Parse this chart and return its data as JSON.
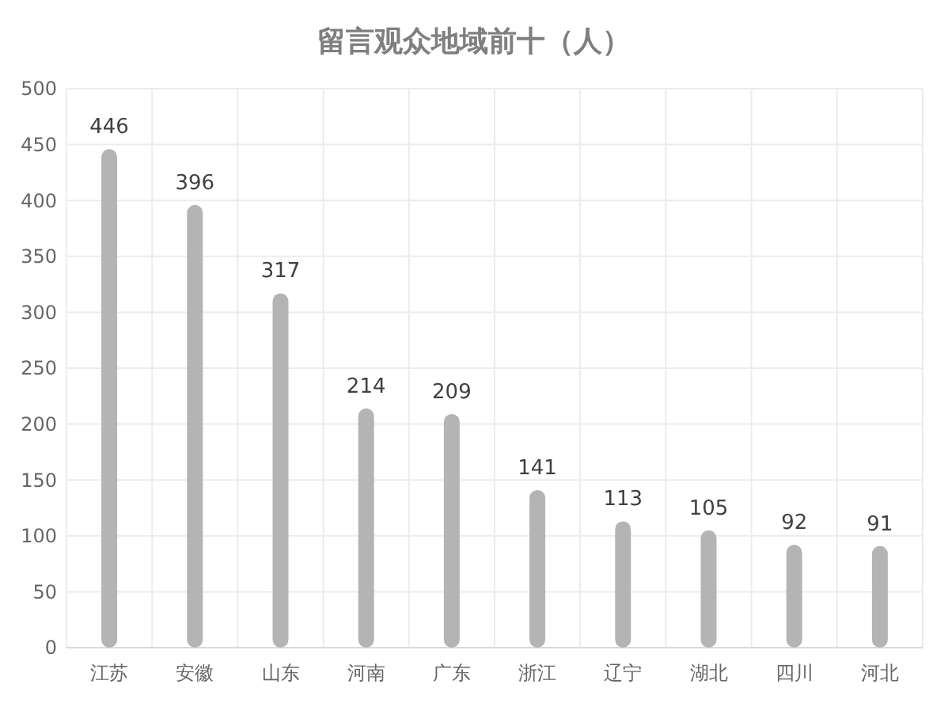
{
  "chart_data": {
    "type": "bar",
    "title": "留言观众地域前十（人）",
    "categories": [
      "江苏",
      "安徽",
      "山东",
      "河南",
      "广东",
      "浙江",
      "辽宁",
      "湖北",
      "四川",
      "河北"
    ],
    "values": [
      446,
      396,
      317,
      214,
      209,
      141,
      113,
      105,
      92,
      91
    ],
    "color": "#b4b4b4",
    "ylim": [
      0,
      500
    ],
    "yticks": [
      0,
      50,
      100,
      150,
      200,
      250,
      300,
      350,
      400,
      450,
      500
    ],
    "grid": true,
    "data_labels": true
  }
}
